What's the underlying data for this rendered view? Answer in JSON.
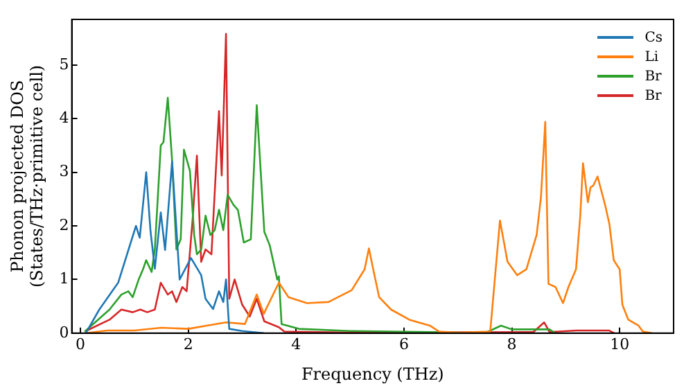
{
  "chart_data": {
    "type": "line",
    "xlabel": "Frequency (THz)",
    "ylabel": "Phonon projected DOS\n(States/THz·primitive cell)",
    "xlim": [
      -0.16,
      11
    ],
    "ylim": [
      0,
      5.85
    ],
    "xticks": [
      0,
      2,
      4,
      6,
      8,
      10
    ],
    "yticks": [
      0,
      1,
      2,
      3,
      4,
      5
    ],
    "grid": false,
    "legend": "top right",
    "marker": "none",
    "line_style": "solid",
    "series": [
      {
        "name": "Cs",
        "color": "#1f77b4",
        "x": [
          0.1,
          0.35,
          0.7,
          1.03,
          1.1,
          1.22,
          1.3,
          1.38,
          1.49,
          1.57,
          1.7,
          1.84,
          2.05,
          2.24,
          2.32,
          2.46,
          2.57,
          2.65,
          2.7,
          2.76,
          3.0,
          3.2,
          3.4
        ],
        "values": [
          0,
          0.44,
          0.94,
          2.0,
          1.78,
          3.0,
          1.9,
          1.2,
          2.25,
          1.55,
          3.2,
          1.0,
          1.4,
          1.08,
          0.64,
          0.45,
          0.78,
          0.58,
          1.0,
          0.08,
          0.04,
          0.02,
          0
        ]
      },
      {
        "name": "Li",
        "color": "#ff7f0e",
        "x": [
          0.1,
          0.5,
          1.0,
          1.5,
          2.0,
          2.4,
          2.7,
          3.05,
          3.27,
          3.4,
          3.68,
          3.86,
          4.2,
          4.6,
          5.03,
          5.27,
          5.35,
          5.43,
          5.54,
          5.76,
          6.1,
          6.48,
          6.65,
          7.0,
          7.6,
          7.78,
          7.92,
          8.1,
          8.27,
          8.46,
          8.54,
          8.62,
          8.68,
          8.81,
          8.95,
          9.05,
          9.19,
          9.27,
          9.32,
          9.41,
          9.46,
          9.51,
          9.59,
          9.73,
          9.81,
          9.89,
          10.0,
          10.05,
          10.16,
          10.35,
          10.43,
          10.6
        ],
        "values": [
          0,
          0.05,
          0.05,
          0.1,
          0.08,
          0.15,
          0.2,
          0.17,
          0.72,
          0.36,
          0.94,
          0.67,
          0.56,
          0.58,
          0.8,
          1.19,
          1.58,
          1.19,
          0.67,
          0.44,
          0.25,
          0.14,
          0.03,
          0.01,
          0.03,
          2.1,
          1.33,
          1.08,
          1.19,
          1.83,
          2.53,
          3.94,
          0.92,
          0.86,
          0.56,
          0.86,
          1.19,
          2.2,
          3.17,
          2.44,
          2.72,
          2.75,
          2.92,
          2.39,
          2.03,
          1.36,
          1.19,
          0.53,
          0.25,
          0.14,
          0.03,
          0
        ]
      },
      {
        "name": "Br",
        "color": "#2ca02c",
        "x": [
          0.08,
          0.54,
          0.76,
          0.89,
          0.97,
          1.08,
          1.16,
          1.22,
          1.32,
          1.38,
          1.49,
          1.54,
          1.62,
          1.7,
          1.78,
          1.86,
          1.92,
          2.03,
          2.11,
          2.16,
          2.24,
          2.32,
          2.41,
          2.49,
          2.57,
          2.65,
          2.73,
          2.84,
          2.92,
          3.03,
          3.16,
          3.27,
          3.41,
          3.51,
          3.65,
          3.68,
          3.73,
          4.05,
          5.0,
          6.5,
          7.5,
          7.8,
          8.0,
          8.7,
          8.8
        ],
        "values": [
          0.03,
          0.44,
          0.72,
          0.78,
          0.67,
          1.0,
          1.19,
          1.36,
          1.14,
          1.56,
          3.5,
          3.56,
          4.39,
          3.22,
          1.56,
          1.75,
          3.42,
          3.03,
          1.83,
          1.47,
          1.56,
          2.19,
          1.83,
          1.92,
          2.3,
          1.92,
          2.58,
          2.39,
          2.3,
          1.69,
          1.75,
          4.25,
          1.89,
          1.64,
          1.0,
          1.06,
          0.17,
          0.08,
          0.04,
          0.02,
          0,
          0.14,
          0.07,
          0.07,
          0
        ]
      },
      {
        "name": "Br",
        "color": "#d62728",
        "x": [
          0.08,
          0.54,
          0.76,
          0.97,
          1.11,
          1.24,
          1.38,
          1.49,
          1.62,
          1.7,
          1.78,
          1.89,
          1.97,
          2.08,
          2.16,
          2.24,
          2.32,
          2.43,
          2.57,
          2.62,
          2.7,
          2.76,
          2.86,
          3.0,
          3.14,
          3.27,
          3.41,
          3.68,
          3.78,
          5.0,
          8.4,
          8.6,
          8.7,
          9.2,
          9.8,
          9.9
        ],
        "values": [
          0.03,
          0.25,
          0.44,
          0.39,
          0.44,
          0.39,
          0.44,
          0.94,
          0.72,
          0.78,
          0.58,
          0.86,
          0.78,
          2.11,
          3.31,
          1.33,
          1.56,
          1.47,
          4.14,
          2.94,
          5.58,
          0.64,
          1.0,
          0.53,
          0.31,
          0.64,
          0.22,
          0.11,
          0.03,
          0.01,
          0.02,
          0.2,
          0.02,
          0.05,
          0.05,
          0
        ]
      }
    ]
  }
}
